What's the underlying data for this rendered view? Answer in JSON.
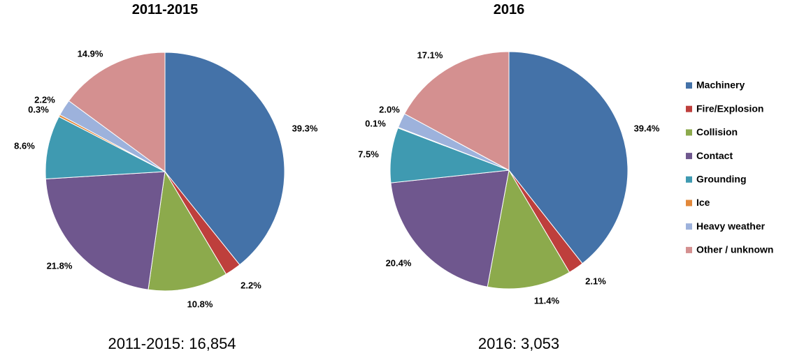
{
  "legend": [
    {
      "label": "Machinery",
      "color": "#4472A8"
    },
    {
      "label": "Fire/Explosion",
      "color": "#BE3F3C"
    },
    {
      "label": "Collision",
      "color": "#8CAA4C"
    },
    {
      "label": "Contact",
      "color": "#6F578E"
    },
    {
      "label": "Grounding",
      "color": "#3F9AB1"
    },
    {
      "label": "Ice",
      "color": "#E2883A"
    },
    {
      "label": "Heavy weather",
      "color": "#9DB2DC"
    },
    {
      "label": "Other / unknown",
      "color": "#D49090"
    }
  ],
  "chart_data": [
    {
      "type": "pie",
      "title": "2011-2015",
      "caption": "2011-2015:  16,854",
      "categories": [
        "Machinery",
        "Fire/Explosion",
        "Collision",
        "Contact",
        "Grounding",
        "Ice",
        "Heavy weather",
        "Other / unknown"
      ],
      "values": [
        39.3,
        2.2,
        10.8,
        21.8,
        8.6,
        0.3,
        2.2,
        14.9
      ],
      "labels": [
        "39.3%",
        "2.2%",
        "10.8%",
        "21.8%",
        "8.6%",
        "0.3%",
        "2.2%",
        "14.9%"
      ],
      "start_angle": "12 o'clock",
      "direction": "clockwise",
      "legend_position": "right"
    },
    {
      "type": "pie",
      "title": "2016",
      "caption": "2016:  3,053",
      "categories": [
        "Machinery",
        "Fire/Explosion",
        "Collision",
        "Contact",
        "Grounding",
        "Ice",
        "Heavy weather",
        "Other / unknown"
      ],
      "values": [
        39.4,
        2.1,
        11.4,
        20.4,
        7.5,
        0.1,
        2.0,
        17.1
      ],
      "labels": [
        "39.4%",
        "2.1%",
        "11.4%",
        "20.4%",
        "7.5%",
        "0.1%",
        "2.0%",
        "17.1%"
      ],
      "start_angle": "12 o'clock",
      "direction": "clockwise",
      "legend_position": "right"
    }
  ]
}
